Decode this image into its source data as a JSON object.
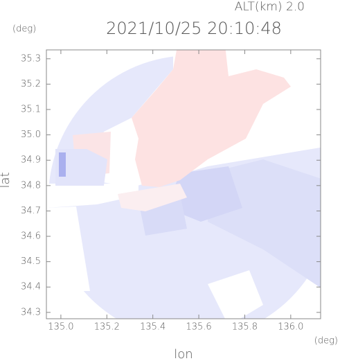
{
  "chart_data": {
    "type": "map",
    "title": "2021/10/25 20:10:48",
    "subtitle": "ALT(km) 2.0",
    "y_unit": "(deg)",
    "x_unit": "(deg)",
    "x_label": "lon",
    "y_label": "lat",
    "xlim": [
      134.937,
      136.13
    ],
    "ylim": [
      34.275,
      35.335
    ],
    "xticks": [
      {
        "value": 135,
        "label": "135.0"
      },
      135.2,
      135.4,
      135.6,
      135.8,
      {
        "value": 136,
        "label": "136.0"
      }
    ],
    "yticks": [
      34.3,
      34.4,
      34.5,
      34.6,
      34.7,
      34.8,
      34.9,
      {
        "value": 35,
        "label": "35.0"
      },
      35.1,
      35.2,
      35.3
    ]
  }
}
